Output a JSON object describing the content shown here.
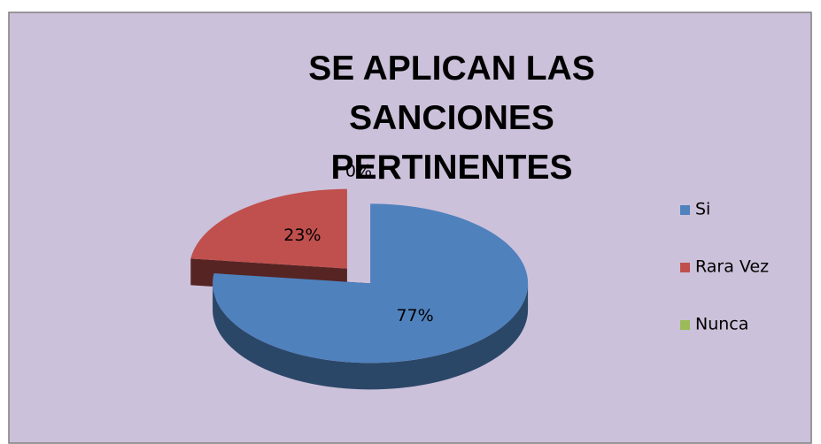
{
  "chart_data": {
    "type": "pie",
    "title": "SE APLICAN LAS SANCIONES PERTINENTES",
    "categories": [
      "Si",
      "Rara Vez",
      "Nunca"
    ],
    "values": [
      77,
      23,
      0
    ],
    "value_labels": [
      "77%",
      "23%",
      "0%"
    ],
    "colors": [
      "#4f81bd",
      "#c0504d",
      "#9bbb59"
    ],
    "legend": "right",
    "exploded": true,
    "three_d": true
  }
}
